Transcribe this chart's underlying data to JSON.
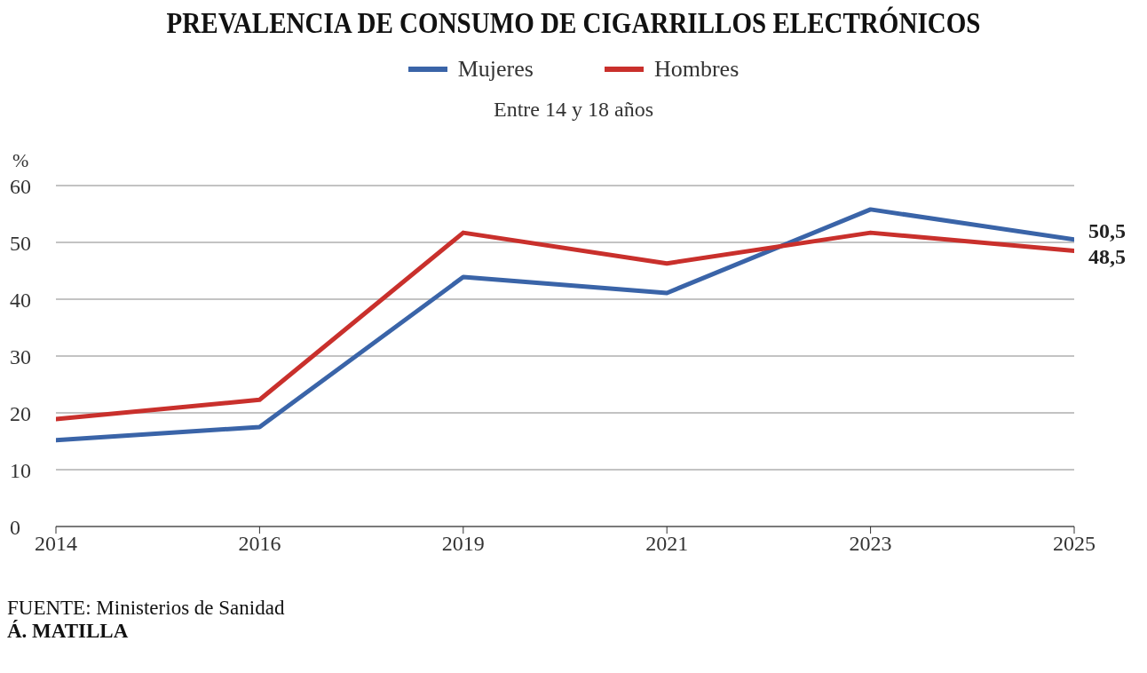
{
  "chart_data": {
    "type": "line",
    "title": "PREVALENCIA DE CONSUMO DE CIGARRILLOS ELECTRÓNICOS",
    "subtitle": "Entre 14 y 18 años",
    "ylabel": "%",
    "categories": [
      "2014",
      "2016",
      "2019",
      "2021",
      "2023",
      "2025"
    ],
    "series": [
      {
        "name": "Mujeres",
        "color": "#3a64a8",
        "values": [
          15.2,
          17.5,
          43.9,
          41.1,
          55.8,
          50.5
        ],
        "value_labels": [
          null,
          null,
          null,
          null,
          null,
          "50,5"
        ]
      },
      {
        "name": "Hombres",
        "color": "#c9302c",
        "values": [
          18.9,
          22.3,
          51.7,
          46.3,
          51.7,
          48.5
        ],
        "value_labels": [
          null,
          null,
          null,
          null,
          null,
          "48,5"
        ]
      }
    ],
    "ylim": [
      0,
      60
    ],
    "yticks": [
      0,
      10,
      20,
      30,
      40,
      50,
      60
    ],
    "grid": "y",
    "legend": "top",
    "marker": "none",
    "line_style": "solid",
    "annotations": [
      "FUENTE: Ministerios de Sanidad",
      "Á. MATILLA"
    ]
  }
}
